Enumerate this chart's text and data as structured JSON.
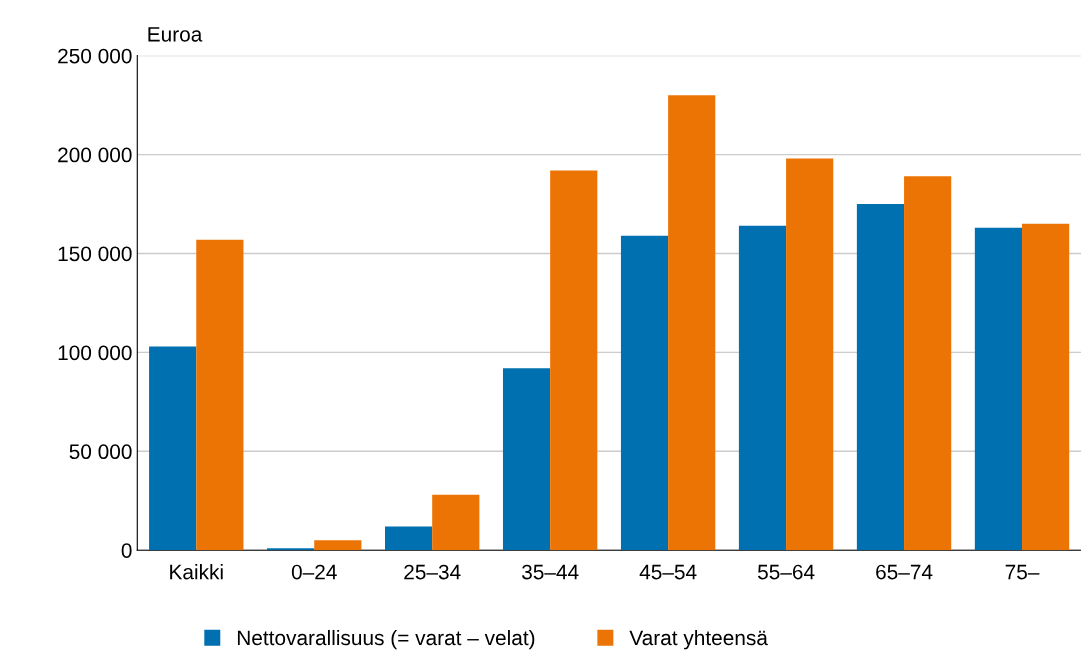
{
  "chart_data": {
    "type": "bar",
    "ylabel": "Euroa",
    "categories": [
      "Kaikki",
      "0–24",
      "25–34",
      "35–44",
      "45–54",
      "55–64",
      "65–74",
      "75–"
    ],
    "series": [
      {
        "name": "Nettovarallisuus (= varat – velat)",
        "color": "#0070b0",
        "values": [
          103000,
          1000,
          12000,
          92000,
          159000,
          164000,
          175000,
          163000
        ]
      },
      {
        "name": "Varat yhteensä",
        "color": "#ec7404",
        "values": [
          157000,
          5000,
          28000,
          192000,
          230000,
          198000,
          189000,
          165000
        ]
      }
    ],
    "ylim": [
      0,
      250000
    ],
    "yticks": [
      {
        "value": 0,
        "label": "0"
      },
      {
        "value": 50000,
        "label": "50 000"
      },
      {
        "value": 100000,
        "label": "100 000"
      },
      {
        "value": 150000,
        "label": "150 000"
      },
      {
        "value": 200000,
        "label": "200 000"
      },
      {
        "value": 250000,
        "label": "250 000"
      }
    ],
    "grid": "y",
    "legend": "bottom"
  }
}
